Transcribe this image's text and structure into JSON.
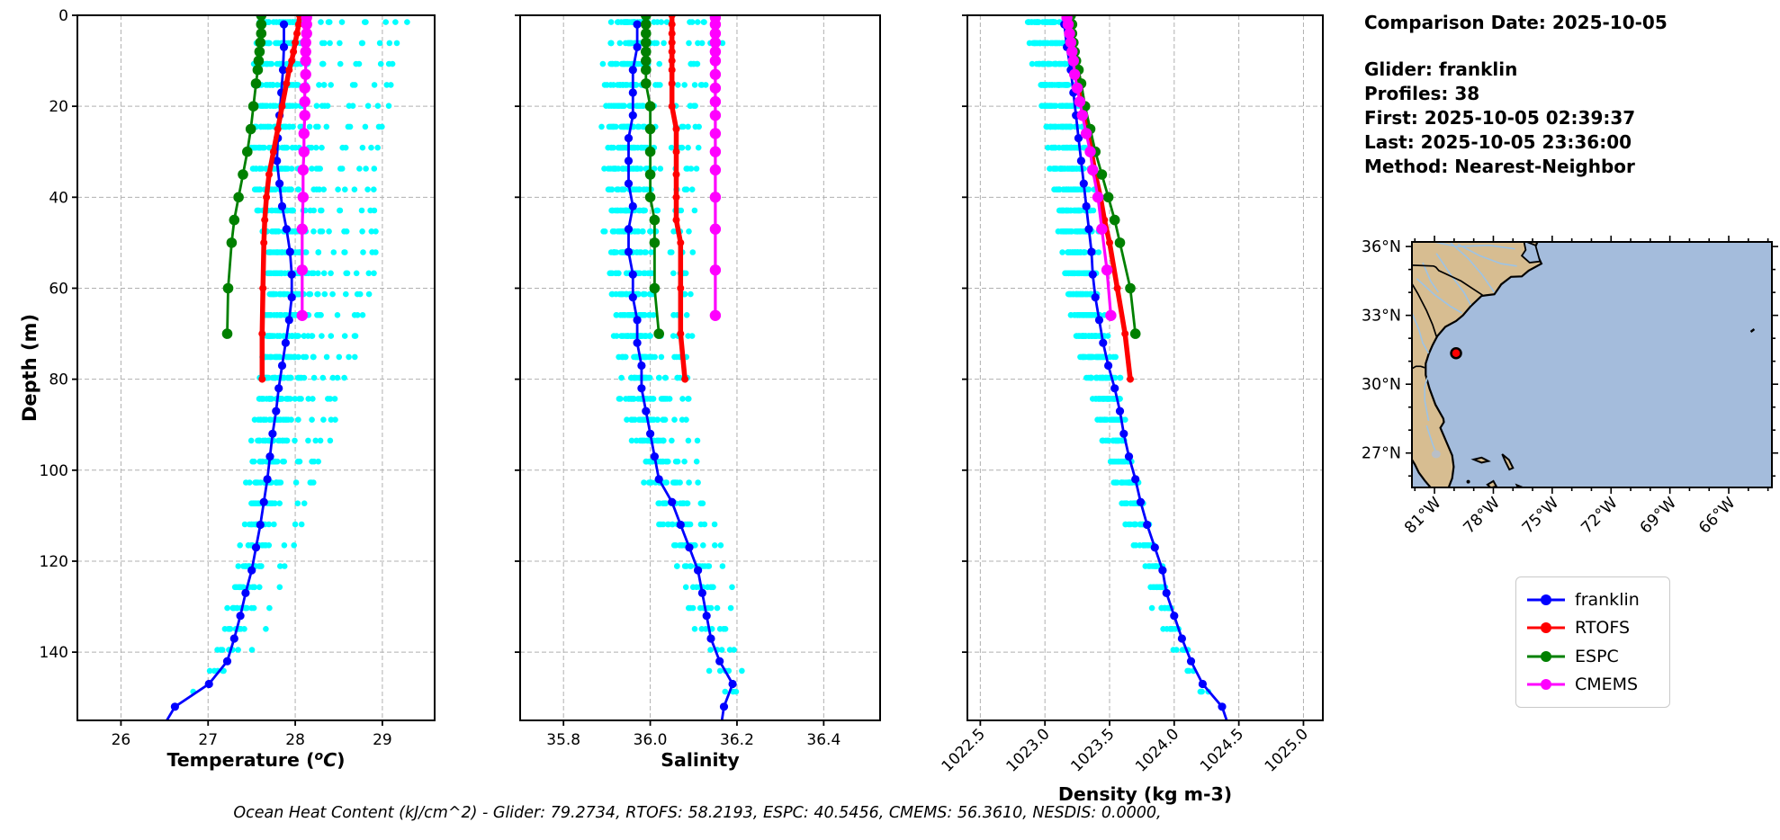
{
  "info": {
    "comparison_date": "Comparison Date: 2025-10-05",
    "glider": "Glider: franklin",
    "profiles": "Profiles: 38",
    "first": "First: 2025-10-05 02:39:37",
    "last": "Last: 2025-10-05 23:36:00",
    "method": "Method: Nearest-Neighbor"
  },
  "caption": "Ocean Heat Content (kJ/cm^2) - Glider: 79.2734,  RTOFS: 58.2193,  ESPC: 40.5456,  CMEMS: 56.3610,  NESDIS: 0.0000,",
  "legend": {
    "items": [
      {
        "label": "franklin",
        "color": "#0000ff"
      },
      {
        "label": "RTOFS",
        "color": "#ff0000"
      },
      {
        "label": "ESPC",
        "color": "#008000"
      },
      {
        "label": "CMEMS",
        "color": "#ff00ff"
      }
    ]
  },
  "map": {
    "lon_range": [
      -82.15,
      -63.8
    ],
    "lat_range": [
      25.5,
      36.2
    ],
    "xticks": [
      -81,
      -78,
      -75,
      -72,
      -69,
      -66
    ],
    "xtick_labels": [
      "81°W",
      "78°W",
      "75°W",
      "72°W",
      "69°W",
      "66°W"
    ],
    "yticks": [
      36,
      33,
      30,
      27
    ],
    "ytick_labels": [
      "36°N",
      "33°N",
      "30°N",
      "27°N"
    ],
    "land_color": "#d7bd91",
    "ocean_color": "#a4bcdc",
    "river_color": "#9cc3e6",
    "lake_color": "#b9bfc7",
    "marker": {
      "lon": -79.9,
      "lat": 31.35,
      "color": "#ff0000"
    }
  },
  "chart_data": [
    {
      "type": "line",
      "xlabel": "Temperature (°C)",
      "xlabel_parts": {
        "pre": "Temperature (",
        "sup": "o",
        "it": "C",
        "post": ")"
      },
      "ylabel": "Depth (m)",
      "x_range": [
        25.5,
        29.6
      ],
      "x_ticks": [
        26,
        27,
        28,
        29
      ],
      "x_tick_labels": [
        "26",
        "27",
        "28",
        "29"
      ],
      "rotate_x_ticks": false,
      "show_y_labels": true,
      "y_range": [
        0,
        155
      ],
      "y_ticks": [
        0,
        20,
        40,
        60,
        80,
        100,
        120,
        140
      ],
      "series": [
        {
          "name": "franklin",
          "color": "#0000ff",
          "line_width": 2.8,
          "marker_radius": 4.6,
          "depths": [
            2,
            7,
            12,
            17,
            22,
            27,
            32,
            37,
            42,
            47,
            52,
            57,
            62,
            67,
            72,
            77,
            82,
            87,
            92,
            97,
            102,
            107,
            112,
            117,
            122,
            127,
            132,
            137,
            142,
            147,
            152
          ],
          "values": [
            27.87,
            27.87,
            27.86,
            27.84,
            27.82,
            27.8,
            27.79,
            27.82,
            27.85,
            27.9,
            27.94,
            27.96,
            27.96,
            27.93,
            27.89,
            27.85,
            27.81,
            27.78,
            27.74,
            27.71,
            27.68,
            27.64,
            27.6,
            27.55,
            27.5,
            27.43,
            27.37,
            27.3,
            27.22,
            27.01,
            26.62
          ]
        },
        {
          "name": "RTOFS",
          "color": "#ff0000",
          "line_width": 5.5,
          "marker_radius": 4.0,
          "depths": [
            0,
            2,
            4,
            6,
            8,
            10,
            12,
            15,
            20,
            25,
            30,
            35,
            40,
            45,
            50,
            60,
            70,
            80
          ],
          "values": [
            28.05,
            28.04,
            28.02,
            28.0,
            27.98,
            27.96,
            27.93,
            27.9,
            27.85,
            27.8,
            27.75,
            27.7,
            27.67,
            27.65,
            27.64,
            27.63,
            27.62,
            27.62
          ]
        },
        {
          "name": "ESPC",
          "color": "#008000",
          "line_width": 2.8,
          "marker_radius": 5.8,
          "depths": [
            0,
            2,
            4,
            6,
            8,
            10,
            12,
            15,
            20,
            25,
            30,
            35,
            40,
            45,
            50,
            60,
            70
          ],
          "values": [
            27.61,
            27.61,
            27.61,
            27.6,
            27.59,
            27.58,
            27.57,
            27.55,
            27.52,
            27.49,
            27.45,
            27.4,
            27.35,
            27.3,
            27.27,
            27.23,
            27.22
          ]
        },
        {
          "name": "CMEMS",
          "color": "#ff00ff",
          "line_width": 3.2,
          "marker_radius": 6.2,
          "depths": [
            0.5,
            2,
            4,
            6,
            8,
            10,
            13,
            16,
            19,
            22,
            26,
            30,
            34,
            40,
            47,
            56,
            66
          ],
          "values": [
            28.13,
            28.13,
            28.13,
            28.12,
            28.12,
            28.12,
            28.12,
            28.11,
            28.11,
            28.11,
            28.1,
            28.1,
            28.09,
            28.09,
            28.08,
            28.08,
            28.08
          ]
        }
      ],
      "scatter": {
        "name": "glider profile points",
        "color": "#00ffff",
        "profiles": 38,
        "center": -0.02,
        "spread": 0.3,
        "outlier_count": 9,
        "outlier_min": 0.3,
        "outlier_max": 1.42,
        "outlier_sign": 1,
        "jitter": 0.05,
        "converge_depth": 170,
        "seed": 7
      }
    },
    {
      "type": "line",
      "xlabel": "Salinity",
      "x_range": [
        35.7,
        36.53
      ],
      "x_ticks": [
        35.8,
        36.0,
        36.2,
        36.4
      ],
      "x_tick_labels": [
        "35.8",
        "36.0",
        "36.2",
        "36.4"
      ],
      "rotate_x_ticks": false,
      "show_y_labels": false,
      "y_range": [
        0,
        155
      ],
      "y_ticks": [
        0,
        20,
        40,
        60,
        80,
        100,
        120,
        140
      ],
      "series": [
        {
          "name": "franklin",
          "color": "#0000ff",
          "line_width": 2.8,
          "marker_radius": 4.6,
          "depths": [
            2,
            7,
            12,
            17,
            22,
            27,
            32,
            37,
            42,
            47,
            52,
            57,
            62,
            67,
            72,
            77,
            82,
            87,
            92,
            97,
            102,
            107,
            112,
            117,
            122,
            127,
            132,
            137,
            142,
            147,
            152
          ],
          "values": [
            35.97,
            35.97,
            35.96,
            35.96,
            35.96,
            35.95,
            35.95,
            35.95,
            35.96,
            35.95,
            35.95,
            35.96,
            35.96,
            35.97,
            35.97,
            35.98,
            35.98,
            35.99,
            36.0,
            36.01,
            36.02,
            36.05,
            36.07,
            36.09,
            36.11,
            36.12,
            36.13,
            36.14,
            36.16,
            36.19,
            36.17
          ]
        },
        {
          "name": "RTOFS",
          "color": "#ff0000",
          "line_width": 5.5,
          "marker_radius": 4.0,
          "depths": [
            0,
            2,
            4,
            6,
            8,
            10,
            12,
            15,
            20,
            25,
            30,
            35,
            40,
            45,
            50,
            60,
            70,
            80
          ],
          "values": [
            36.05,
            36.05,
            36.05,
            36.05,
            36.05,
            36.05,
            36.05,
            36.05,
            36.05,
            36.06,
            36.06,
            36.06,
            36.06,
            36.06,
            36.07,
            36.07,
            36.07,
            36.08
          ]
        },
        {
          "name": "ESPC",
          "color": "#008000",
          "line_width": 2.8,
          "marker_radius": 5.8,
          "depths": [
            0,
            2,
            4,
            6,
            8,
            10,
            12,
            15,
            20,
            25,
            30,
            35,
            40,
            45,
            50,
            60,
            70
          ],
          "values": [
            35.99,
            35.99,
            35.99,
            35.99,
            35.99,
            35.99,
            35.99,
            35.99,
            36.0,
            36.0,
            36.0,
            36.0,
            36.0,
            36.01,
            36.01,
            36.01,
            36.02
          ]
        },
        {
          "name": "CMEMS",
          "color": "#ff00ff",
          "line_width": 3.2,
          "marker_radius": 6.2,
          "depths": [
            0.5,
            2,
            4,
            6,
            8,
            10,
            13,
            16,
            19,
            22,
            26,
            30,
            34,
            40,
            47,
            56,
            66
          ],
          "values": [
            36.15,
            36.15,
            36.15,
            36.15,
            36.15,
            36.15,
            36.15,
            36.15,
            36.15,
            36.15,
            36.15,
            36.15,
            36.15,
            36.15,
            36.15,
            36.15,
            36.15
          ]
        }
      ],
      "scatter": {
        "name": "glider profile points",
        "color": "#00ffff",
        "profiles": 38,
        "center": 0.0,
        "spread": 0.05,
        "outlier_count": 6,
        "outlier_min": 0.08,
        "outlier_max": 0.2,
        "outlier_sign": 1,
        "jitter": 0.025,
        "converge_depth": 170,
        "seed": 11
      }
    },
    {
      "type": "line",
      "xlabel": "Density (kg m-3)",
      "x_range": [
        1022.4,
        1025.15
      ],
      "x_ticks": [
        1022.5,
        1023.0,
        1023.5,
        1024.0,
        1024.5,
        1025.0
      ],
      "x_tick_labels": [
        "1022.5",
        "1023.0",
        "1023.5",
        "1024.0",
        "1024.5",
        "1025.0"
      ],
      "rotate_x_ticks": true,
      "show_y_labels": false,
      "y_range": [
        0,
        155
      ],
      "y_ticks": [
        0,
        20,
        40,
        60,
        80,
        100,
        120,
        140
      ],
      "series": [
        {
          "name": "franklin",
          "color": "#0000ff",
          "line_width": 2.8,
          "marker_radius": 4.6,
          "depths": [
            2,
            7,
            12,
            17,
            22,
            27,
            32,
            37,
            42,
            47,
            52,
            57,
            62,
            67,
            72,
            77,
            82,
            87,
            92,
            97,
            102,
            107,
            112,
            117,
            122,
            127,
            132,
            137,
            142,
            147,
            152
          ],
          "values": [
            1023.15,
            1023.17,
            1023.2,
            1023.22,
            1023.24,
            1023.26,
            1023.28,
            1023.3,
            1023.32,
            1023.34,
            1023.36,
            1023.37,
            1023.39,
            1023.42,
            1023.45,
            1023.49,
            1023.54,
            1023.58,
            1023.61,
            1023.65,
            1023.7,
            1023.74,
            1023.79,
            1023.85,
            1023.91,
            1023.94,
            1024.0,
            1024.06,
            1024.13,
            1024.22,
            1024.37
          ]
        },
        {
          "name": "RTOFS",
          "color": "#ff0000",
          "line_width": 5.5,
          "marker_radius": 4.0,
          "depths": [
            0,
            2,
            4,
            6,
            8,
            10,
            12,
            15,
            20,
            25,
            30,
            35,
            40,
            45,
            50,
            60,
            70,
            80
          ],
          "values": [
            1023.18,
            1023.19,
            1023.2,
            1023.21,
            1023.22,
            1023.23,
            1023.25,
            1023.27,
            1023.3,
            1023.33,
            1023.36,
            1023.39,
            1023.43,
            1023.46,
            1023.5,
            1023.56,
            1023.62,
            1023.66
          ]
        },
        {
          "name": "ESPC",
          "color": "#008000",
          "line_width": 2.8,
          "marker_radius": 5.8,
          "depths": [
            0,
            2,
            4,
            6,
            8,
            10,
            12,
            15,
            20,
            25,
            30,
            35,
            40,
            45,
            50,
            60,
            70
          ],
          "values": [
            1023.2,
            1023.21,
            1023.21,
            1023.22,
            1023.23,
            1023.24,
            1023.26,
            1023.28,
            1023.31,
            1023.35,
            1023.39,
            1023.44,
            1023.49,
            1023.54,
            1023.58,
            1023.66,
            1023.7
          ]
        },
        {
          "name": "CMEMS",
          "color": "#ff00ff",
          "line_width": 3.2,
          "marker_radius": 6.2,
          "depths": [
            0.5,
            2,
            4,
            6,
            8,
            10,
            13,
            16,
            19,
            22,
            26,
            30,
            34,
            40,
            47,
            56,
            66
          ],
          "values": [
            1023.17,
            1023.18,
            1023.19,
            1023.2,
            1023.21,
            1023.22,
            1023.23,
            1023.25,
            1023.27,
            1023.29,
            1023.32,
            1023.35,
            1023.37,
            1023.41,
            1023.44,
            1023.48,
            1023.51
          ]
        }
      ],
      "scatter": {
        "name": "glider profile points",
        "color": "#00ffff",
        "profiles": 38,
        "center": -0.1,
        "spread": 0.17,
        "outlier_count": 6,
        "outlier_min": 0.12,
        "outlier_max": 0.28,
        "outlier_sign": -1,
        "jitter": 0.035,
        "converge_depth": 170,
        "seed": 13
      }
    }
  ]
}
